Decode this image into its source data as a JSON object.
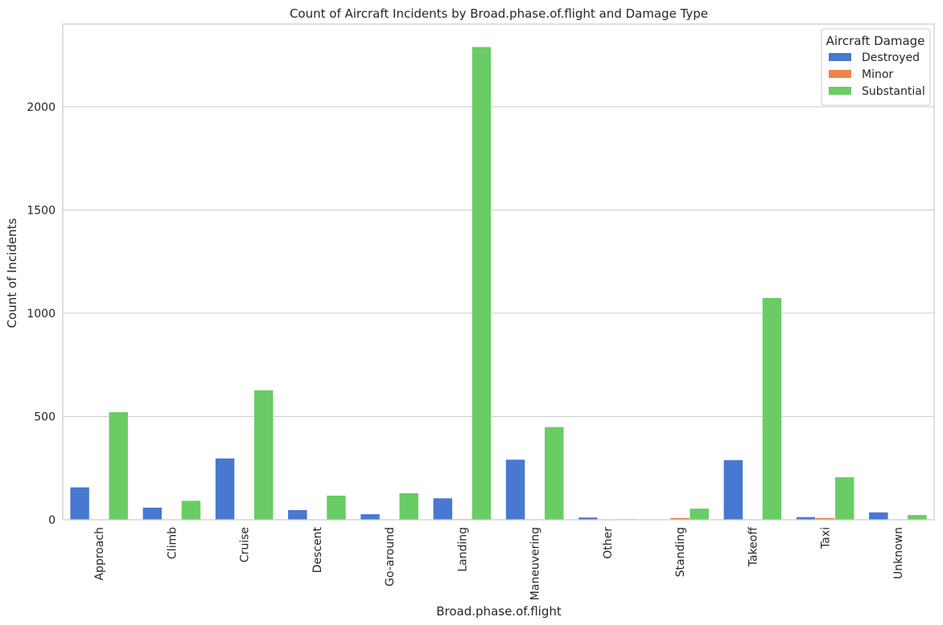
{
  "chart_data": {
    "type": "bar",
    "title": "Count of Aircraft Incidents by Broad.phase.of.flight and Damage Type",
    "xlabel": "Broad.phase.of.flight",
    "ylabel": "Count of Incidents",
    "categories": [
      "Approach",
      "Climb",
      "Cruise",
      "Descent",
      "Go-around",
      "Landing",
      "Maneuvering",
      "Other",
      "Standing",
      "Takeoff",
      "Taxi",
      "Unknown"
    ],
    "series": [
      {
        "name": "Destroyed",
        "color": "#4878d0",
        "values": [
          158,
          60,
          298,
          48,
          28,
          105,
          292,
          12,
          3,
          290,
          14,
          37
        ]
      },
      {
        "name": "Minor",
        "color": "#ee854a",
        "values": [
          2,
          0,
          2,
          0,
          0,
          4,
          1,
          0,
          10,
          2,
          10,
          0
        ]
      },
      {
        "name": "Substantial",
        "color": "#6acc64",
        "values": [
          522,
          93,
          628,
          118,
          130,
          2290,
          450,
          4,
          55,
          1075,
          207,
          24
        ]
      }
    ],
    "ylim": [
      0,
      2400
    ],
    "yticks": [
      0,
      500,
      1000,
      1500,
      2000
    ],
    "grid": "y",
    "legend": {
      "title": "Aircraft Damage",
      "placement": "top-right"
    }
  }
}
